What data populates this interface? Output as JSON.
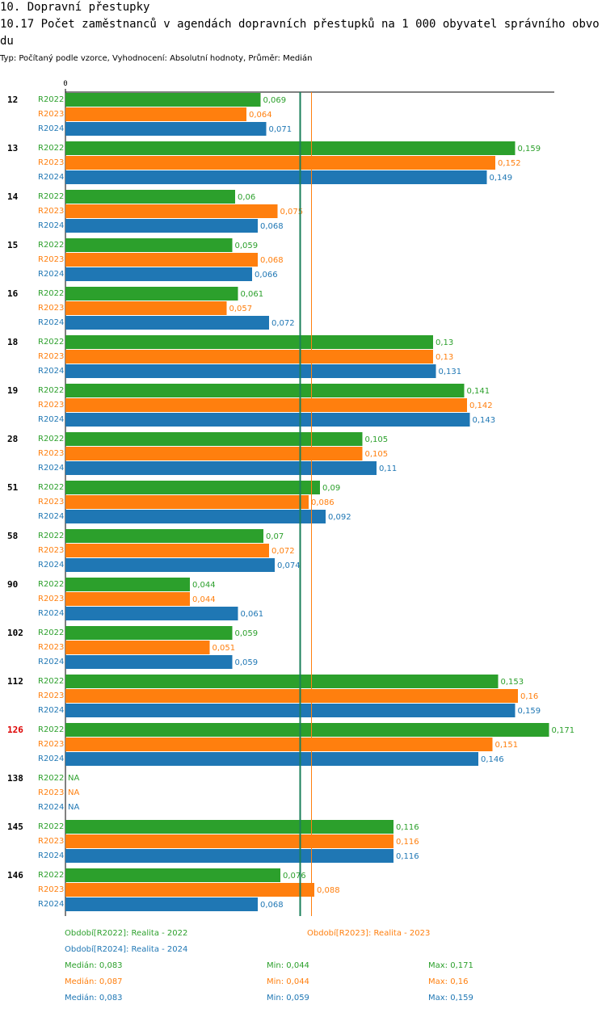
{
  "title": "10. Dopravní přestupky",
  "subtitle": "10.17 Počet zaměstnanců v agendách dopravních přestupků na 1 000 obyvatel správního obvodu",
  "meta": "Typ: Počítaný podle vzorce, Vyhodnocení: Absolutní hodnoty, Průměr: Medián",
  "chart_data": {
    "type": "bar",
    "orientation": "horizontal",
    "xlim": [
      0,
      0.175
    ],
    "x_tick_label": "0",
    "categories": [
      "12",
      "13",
      "14",
      "15",
      "16",
      "18",
      "19",
      "28",
      "51",
      "58",
      "90",
      "102",
      "112",
      "126",
      "138",
      "145",
      "146"
    ],
    "highlighted_category": "126",
    "series": [
      {
        "name": "R2022",
        "color": "#2ca02c",
        "values": [
          0.069,
          0.159,
          0.06,
          0.059,
          0.061,
          0.13,
          0.141,
          0.105,
          0.09,
          0.07,
          0.044,
          0.059,
          0.153,
          0.171,
          null,
          0.116,
          0.076
        ]
      },
      {
        "name": "R2023",
        "color": "#ff7f0e",
        "values": [
          0.064,
          0.152,
          0.075,
          0.068,
          0.057,
          0.13,
          0.142,
          0.105,
          0.086,
          0.072,
          0.044,
          0.051,
          0.16,
          0.151,
          null,
          0.116,
          0.088
        ]
      },
      {
        "name": "R2024",
        "color": "#1f77b4",
        "values": [
          0.071,
          0.149,
          0.068,
          0.066,
          0.072,
          0.131,
          0.143,
          0.11,
          0.092,
          0.074,
          0.061,
          0.059,
          0.159,
          0.146,
          null,
          0.116,
          0.068
        ]
      }
    ],
    "value_labels": [
      [
        "0,069",
        "0,064",
        "0,071"
      ],
      [
        "0,159",
        "0,152",
        "0,149"
      ],
      [
        "0,06",
        "0,075",
        "0,068"
      ],
      [
        "0,059",
        "0,068",
        "0,066"
      ],
      [
        "0,061",
        "0,057",
        "0,072"
      ],
      [
        "0,13",
        "0,13",
        "0,131"
      ],
      [
        "0,141",
        "0,142",
        "0,143"
      ],
      [
        "0,105",
        "0,105",
        "0,11"
      ],
      [
        "0,09",
        "0,086",
        "0,092"
      ],
      [
        "0,07",
        "0,072",
        "0,074"
      ],
      [
        "0,044",
        "0,044",
        "0,061"
      ],
      [
        "0,059",
        "0,051",
        "0,059"
      ],
      [
        "0,153",
        "0,16",
        "0,159"
      ],
      [
        "0,171",
        "0,151",
        "0,146"
      ],
      [
        "NA",
        "NA",
        "NA"
      ],
      [
        "0,116",
        "0,116",
        "0,116"
      ],
      [
        "0,076",
        "0,088",
        "0,068"
      ]
    ],
    "reference_lines": [
      {
        "name": "median-2022-2024",
        "value": 0.083,
        "color": "#1a7f5a"
      },
      {
        "name": "median-2023",
        "value": 0.087,
        "color": "#ff7f0e"
      }
    ]
  },
  "legend": {
    "periods": [
      {
        "text": "Období[R2022]: Realita - 2022",
        "color": "#2ca02c"
      },
      {
        "text": "Období[R2023]: Realita - 2023",
        "color": "#ff7f0e"
      },
      {
        "text": "Období[R2024]: Realita - 2024",
        "color": "#1f77b4"
      }
    ],
    "stats": [
      {
        "median": "Medián: 0,083",
        "min": "Min: 0,044",
        "max": "Max: 0,171",
        "color": "#2ca02c"
      },
      {
        "median": "Medián: 0,087",
        "min": "Min: 0,044",
        "max": "Max: 0,16",
        "color": "#ff7f0e"
      },
      {
        "median": "Medián: 0,083",
        "min": "Min: 0,059",
        "max": "Max: 0,159",
        "color": "#1f77b4"
      }
    ]
  }
}
